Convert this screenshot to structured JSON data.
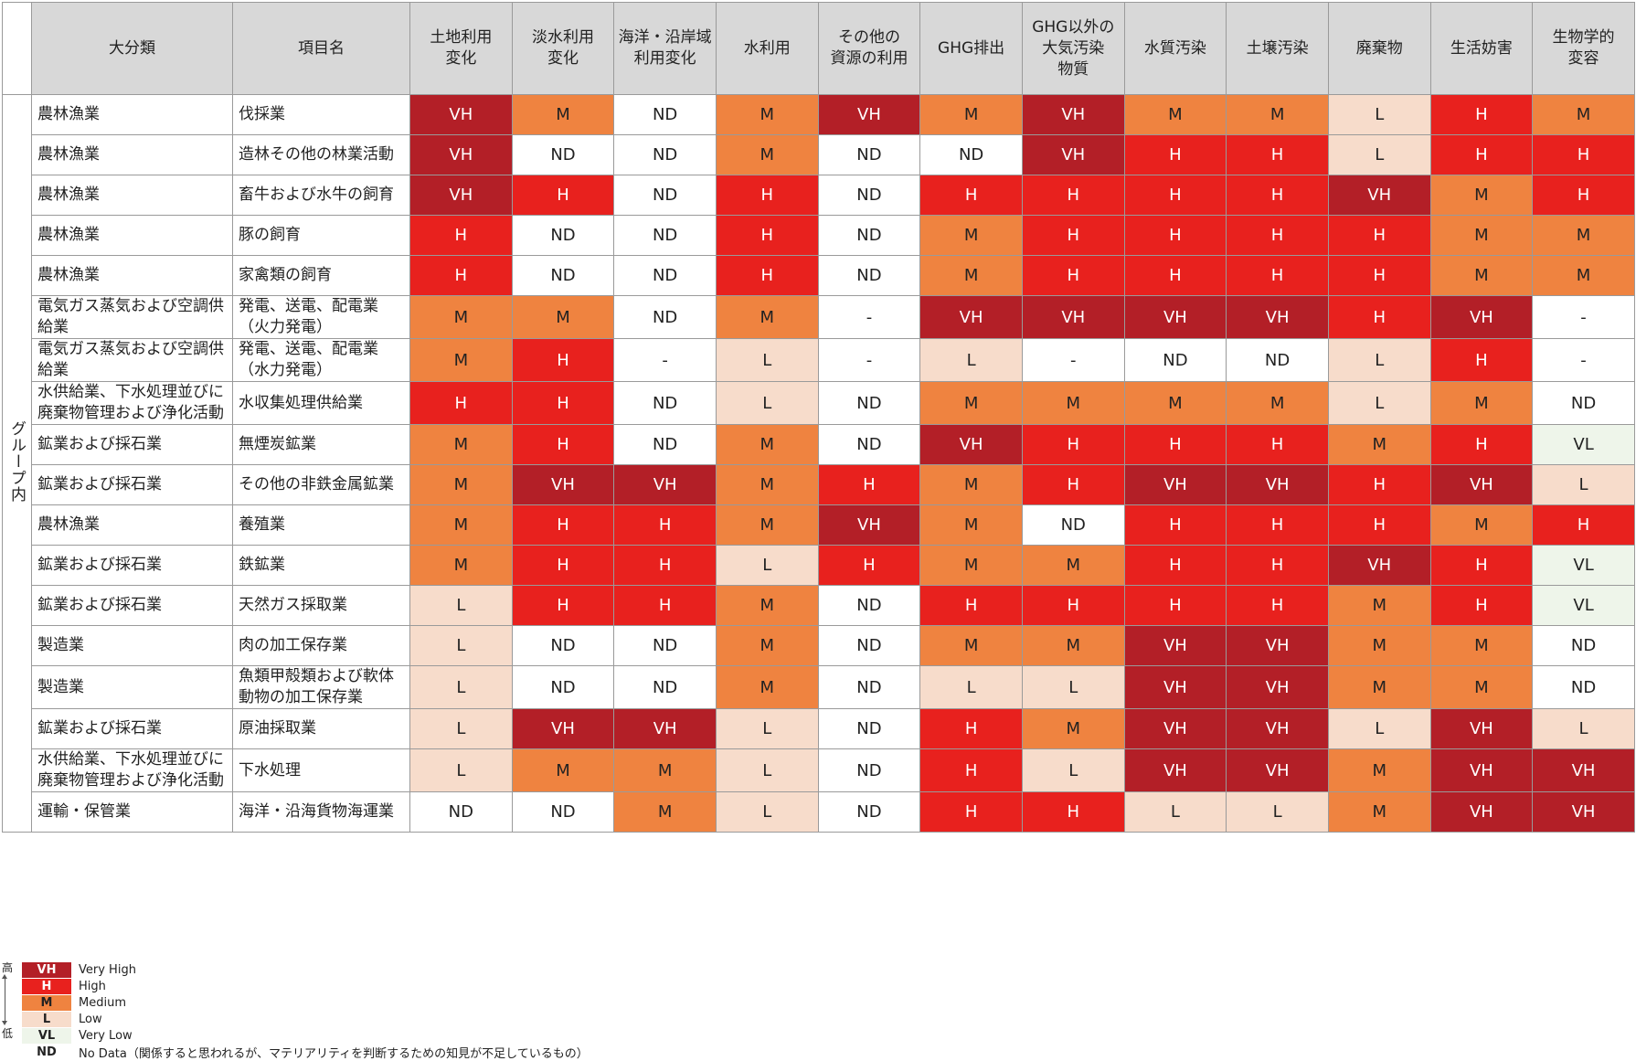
{
  "table": {
    "group_label": "グループ内",
    "headers": {
      "category": "大分類",
      "item": "項目名",
      "impacts": [
        [
          "土地利用",
          "変化"
        ],
        [
          "淡水利用",
          "変化"
        ],
        [
          "海洋・沿岸域",
          "利用変化"
        ],
        [
          "水利用"
        ],
        [
          "その他の",
          "資源の利用"
        ],
        [
          "GHG排出"
        ],
        [
          "GHG以外の",
          "大気汚染",
          "物質"
        ],
        [
          "水質汚染"
        ],
        [
          "土壌汚染"
        ],
        [
          "廃棄物"
        ],
        [
          "生活妨害"
        ],
        [
          "生物学的",
          "変容"
        ]
      ]
    },
    "rows": [
      {
        "category": "農林漁業",
        "item": "伐採業",
        "values": [
          "VH",
          "M",
          "ND",
          "M",
          "VH",
          "M",
          "VH",
          "M",
          "M",
          "L",
          "H",
          "M"
        ]
      },
      {
        "category": "農林漁業",
        "item": "造林その他の林業活動",
        "values": [
          "VH",
          "ND",
          "ND",
          "M",
          "ND",
          "ND",
          "VH",
          "H",
          "H",
          "L",
          "H",
          "H"
        ]
      },
      {
        "category": "農林漁業",
        "item": "畜牛および水牛の飼育",
        "values": [
          "VH",
          "H",
          "ND",
          "H",
          "ND",
          "H",
          "H",
          "H",
          "H",
          "VH",
          "M",
          "H"
        ]
      },
      {
        "category": "農林漁業",
        "item": "豚の飼育",
        "values": [
          "H",
          "ND",
          "ND",
          "H",
          "ND",
          "M",
          "H",
          "H",
          "H",
          "H",
          "M",
          "M"
        ]
      },
      {
        "category": "農林漁業",
        "item": "家禽類の飼育",
        "values": [
          "H",
          "ND",
          "ND",
          "H",
          "ND",
          "M",
          "H",
          "H",
          "H",
          "H",
          "M",
          "M"
        ]
      },
      {
        "category": "電気ガス蒸気および空調供給業",
        "item": "発電、送電、配電業（火力発電）",
        "values": [
          "M",
          "M",
          "ND",
          "M",
          "-",
          "VH",
          "VH",
          "VH",
          "VH",
          "H",
          "VH",
          "-"
        ]
      },
      {
        "category": "電気ガス蒸気および空調供給業",
        "item": "発電、送電、配電業（水力発電）",
        "values": [
          "M",
          "H",
          "-",
          "L",
          "-",
          "L",
          "-",
          "ND",
          "ND",
          "L",
          "H",
          "-"
        ]
      },
      {
        "category": "水供給業、下水処理並びに廃棄物管理および浄化活動",
        "item": "水収集処理供給業",
        "values": [
          "H",
          "H",
          "ND",
          "L",
          "ND",
          "M",
          "M",
          "M",
          "M",
          "L",
          "M",
          "ND"
        ]
      },
      {
        "category": "鉱業および採石業",
        "item": "無煙炭鉱業",
        "values": [
          "M",
          "H",
          "ND",
          "M",
          "ND",
          "VH",
          "H",
          "H",
          "H",
          "M",
          "H",
          "VL"
        ]
      },
      {
        "category": "鉱業および採石業",
        "item": "その他の非鉄金属鉱業",
        "values": [
          "M",
          "VH",
          "VH",
          "M",
          "H",
          "M",
          "H",
          "VH",
          "VH",
          "H",
          "VH",
          "L"
        ]
      },
      {
        "category": "農林漁業",
        "item": "養殖業",
        "values": [
          "M",
          "H",
          "H",
          "M",
          "VH",
          "M",
          "ND",
          "H",
          "H",
          "H",
          "M",
          "H"
        ]
      },
      {
        "category": "鉱業および採石業",
        "item": "鉄鉱業",
        "values": [
          "M",
          "H",
          "H",
          "L",
          "H",
          "M",
          "M",
          "H",
          "H",
          "VH",
          "H",
          "VL"
        ]
      },
      {
        "category": "鉱業および採石業",
        "item": "天然ガス採取業",
        "values": [
          "L",
          "H",
          "H",
          "M",
          "ND",
          "H",
          "H",
          "H",
          "H",
          "M",
          "H",
          "VL"
        ]
      },
      {
        "category": "製造業",
        "item": "肉の加工保存業",
        "values": [
          "L",
          "ND",
          "ND",
          "M",
          "ND",
          "M",
          "M",
          "VH",
          "VH",
          "M",
          "M",
          "ND"
        ]
      },
      {
        "category": "製造業",
        "item": "魚類甲殻類および軟体動物の加工保存業",
        "values": [
          "L",
          "ND",
          "ND",
          "M",
          "ND",
          "L",
          "L",
          "VH",
          "VH",
          "M",
          "M",
          "ND"
        ]
      },
      {
        "category": "鉱業および採石業",
        "item": "原油採取業",
        "values": [
          "L",
          "VH",
          "VH",
          "L",
          "ND",
          "H",
          "M",
          "VH",
          "VH",
          "L",
          "VH",
          "L"
        ]
      },
      {
        "category": "水供給業、下水処理並びに廃棄物管理および浄化活動",
        "item": "下水処理",
        "values": [
          "L",
          "M",
          "M",
          "L",
          "ND",
          "H",
          "L",
          "VH",
          "VH",
          "M",
          "VH",
          "VH"
        ]
      },
      {
        "category": "運輸・保管業",
        "item": "海洋・沿海貨物海運業",
        "values": [
          "ND",
          "ND",
          "M",
          "L",
          "ND",
          "H",
          "H",
          "L",
          "L",
          "M",
          "VH",
          "VH"
        ]
      }
    ]
  },
  "legend": {
    "axis_high": "高",
    "axis_low": "低",
    "items": [
      {
        "code": "VH",
        "label": "Very High"
      },
      {
        "code": "H",
        "label": "High"
      },
      {
        "code": "M",
        "label": "Medium"
      },
      {
        "code": "L",
        "label": "Low"
      },
      {
        "code": "VL",
        "label": "Very Low"
      },
      {
        "code": "ND",
        "label": "No Data（関係すると思われるが、マテリアリティを判断するための知見が不足しているもの）"
      }
    ]
  }
}
